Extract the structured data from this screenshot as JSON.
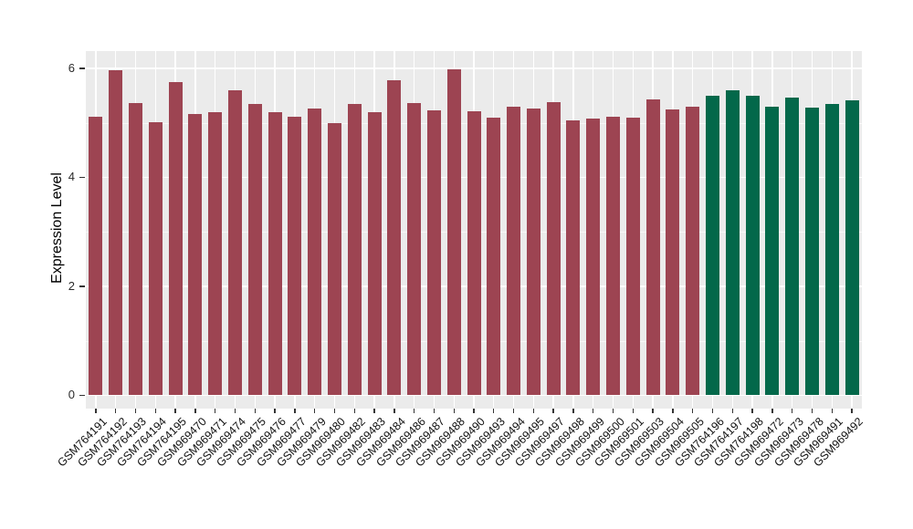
{
  "figure": {
    "background_color": "#FFFFFF",
    "panel_background_color": "#EBEBEB",
    "gridline_color": "#FFFFFF",
    "tick_color": "#333333"
  },
  "chart_data": {
    "type": "bar",
    "title": "",
    "xlabel": "",
    "ylabel": "Expression Level",
    "ylim": [
      0,
      6.31
    ],
    "yticks": [
      0,
      2,
      4,
      6
    ],
    "ytick_labels": [
      "0",
      "2",
      "4",
      "6"
    ],
    "minor_yticks": [
      1,
      3,
      5
    ],
    "grid": true,
    "legend": false,
    "categories": [
      "GSM764191",
      "GSM764192",
      "GSM764193",
      "GSM764194",
      "GSM764195",
      "GSM969470",
      "GSM969471",
      "GSM969474",
      "GSM969475",
      "GSM969476",
      "GSM969477",
      "GSM969479",
      "GSM969480",
      "GSM969482",
      "GSM969483",
      "GSM969484",
      "GSM969486",
      "GSM969487",
      "GSM969488",
      "GSM969490",
      "GSM969493",
      "GSM969494",
      "GSM969495",
      "GSM969497",
      "GSM969498",
      "GSM969499",
      "GSM969500",
      "GSM969501",
      "GSM969503",
      "GSM969504",
      "GSM969505",
      "GSM764196",
      "GSM764197",
      "GSM764198",
      "GSM969472",
      "GSM969473",
      "GSM969478",
      "GSM969491",
      "GSM969492"
    ],
    "values": [
      5.11,
      5.97,
      5.37,
      5.01,
      5.75,
      5.17,
      5.2,
      5.6,
      5.35,
      5.19,
      5.12,
      5.26,
      4.99,
      5.34,
      5.19,
      5.78,
      5.37,
      5.23,
      5.99,
      5.22,
      5.09,
      5.3,
      5.27,
      5.38,
      5.04,
      5.08,
      5.12,
      5.09,
      5.43,
      5.25,
      5.29,
      5.49,
      5.6,
      5.49,
      5.29,
      5.46,
      5.28,
      5.35,
      5.42
    ],
    "groups": [
      "red",
      "red",
      "red",
      "red",
      "red",
      "red",
      "red",
      "red",
      "red",
      "red",
      "red",
      "red",
      "red",
      "red",
      "red",
      "red",
      "red",
      "red",
      "red",
      "red",
      "red",
      "red",
      "red",
      "red",
      "red",
      "red",
      "red",
      "red",
      "red",
      "red",
      "red",
      "green",
      "green",
      "green",
      "green",
      "green",
      "green",
      "green",
      "green"
    ],
    "group_colors": {
      "red": "#9D4452",
      "green": "#03684A"
    }
  }
}
